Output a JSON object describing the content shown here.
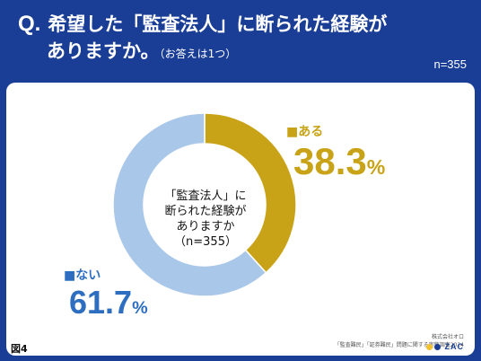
{
  "question": {
    "mark": "Q.",
    "line1": "希望した「監査法人」に断られた経験が",
    "line2": "ありますか。",
    "note": "（お答えは1つ）"
  },
  "sample_size": "n=355",
  "center_label": [
    "「監査法人」に",
    "断られた経験が",
    "ありますか",
    "（n=355）"
  ],
  "figure_label": "図4",
  "footer": {
    "company": "株式会社オロ",
    "survey": "「監査難民」「証券難民」問題に関する実態調査2024",
    "logo_text": "ZAC"
  },
  "colors": {
    "yes": "#c9a317",
    "no": "#a9c7e8",
    "no_text": "#2d6ec1",
    "header_bg": "#1a3e96",
    "logo_yellow": "#f2c230",
    "logo_blue": "#1a3e96"
  },
  "chart_data": {
    "type": "pie",
    "donut": true,
    "slices": [
      {
        "label": "■ある",
        "value": 38.3,
        "display": "38.3",
        "unit": "%",
        "color": "#c9a317"
      },
      {
        "label": "■ない",
        "value": 61.7,
        "display": "61.7",
        "unit": "%",
        "color": "#a9c7e8"
      }
    ]
  }
}
